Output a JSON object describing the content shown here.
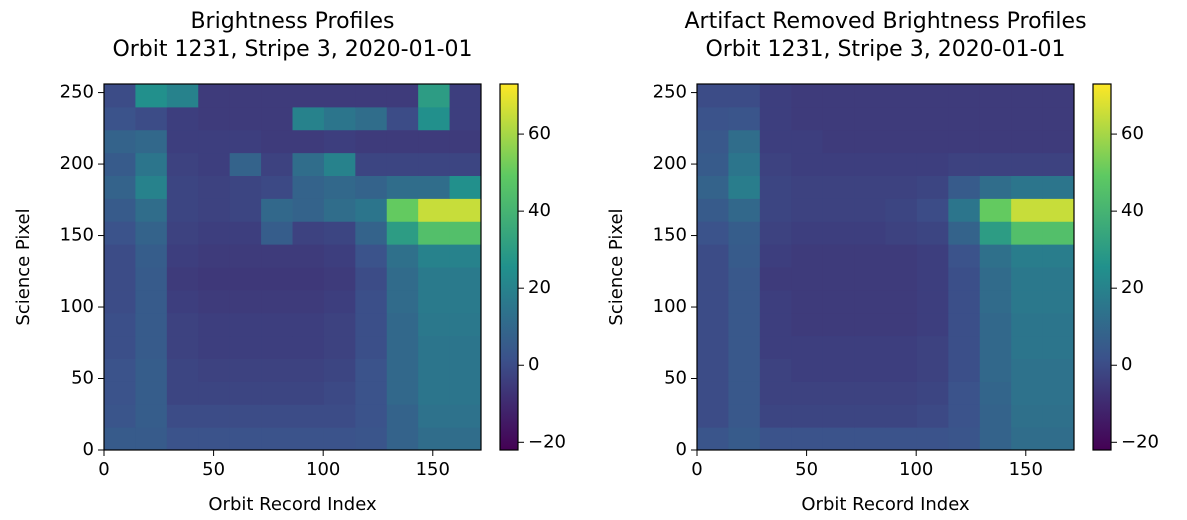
{
  "chart_data": [
    {
      "type": "heatmap",
      "title": "Brightness Profiles",
      "subtitle": "Orbit 1231, Stripe 3, 2020-01-01",
      "x_label": "Orbit Record Index",
      "y_label": "Science Pixel",
      "colormap": "viridis",
      "xlim": [
        0,
        172
      ],
      "ylim": [
        0,
        256
      ],
      "xticks": [
        0,
        50,
        100,
        150
      ],
      "yticks": [
        0,
        50,
        100,
        150,
        200,
        250
      ],
      "clim": [
        -22,
        73
      ],
      "cticks": [
        {
          "value": -20,
          "label": "−20"
        },
        0,
        20,
        40,
        60
      ],
      "z": [
        [
          5,
          5,
          2,
          2,
          2,
          2,
          2,
          2,
          3,
          8,
          12,
          12
        ],
        [
          3,
          6,
          0,
          0,
          0,
          0,
          0,
          0,
          2,
          8,
          14,
          14
        ],
        [
          2,
          6,
          -2,
          -2,
          -2,
          -2,
          -2,
          -1,
          2,
          10,
          15,
          15
        ],
        [
          2,
          6,
          -2,
          -3,
          -3,
          -3,
          -3,
          -2,
          2,
          10,
          15,
          15
        ],
        [
          1,
          5,
          -3,
          -4,
          -4,
          -4,
          -4,
          -3,
          1,
          10,
          15,
          15
        ],
        [
          1,
          5,
          -3,
          -4,
          -4,
          -4,
          -4,
          -3,
          1,
          10,
          16,
          16
        ],
        [
          0,
          5,
          -4,
          -5,
          -5,
          -5,
          -5,
          -4,
          1,
          11,
          17,
          17
        ],
        [
          0,
          5,
          -5,
          -6,
          -6,
          -6,
          -6,
          -5,
          0,
          11,
          17,
          17
        ],
        [
          0,
          6,
          -4,
          -5,
          -5,
          -5,
          -5,
          -4,
          2,
          13,
          20,
          20
        ],
        [
          2,
          8,
          -3,
          -4,
          -4,
          6,
          -3,
          -2,
          8,
          30,
          45,
          45
        ],
        [
          5,
          12,
          -2,
          -3,
          -2,
          10,
          8,
          12,
          15,
          50,
          65,
          65
        ],
        [
          8,
          20,
          -2,
          -3,
          -2,
          -1,
          8,
          10,
          8,
          12,
          12,
          25
        ],
        [
          5,
          15,
          -3,
          -4,
          8,
          -3,
          12,
          20,
          -2,
          -2,
          -2,
          -2
        ],
        [
          8,
          10,
          -4,
          -4,
          -4,
          -5,
          -5,
          -4,
          -5,
          -5,
          -5,
          -5
        ],
        [
          2,
          0,
          -4,
          -5,
          -5,
          -5,
          20,
          15,
          12,
          0,
          25,
          -4
        ],
        [
          0,
          25,
          20,
          -5,
          -5,
          -5,
          -5,
          -5,
          -5,
          -5,
          30,
          -4
        ]
      ]
    },
    {
      "type": "heatmap",
      "title": "Artifact Removed Brightness Profiles",
      "subtitle": "Orbit 1231, Stripe 3, 2020-01-01",
      "x_label": "Orbit Record Index",
      "y_label": "Science Pixel",
      "colormap": "viridis",
      "xlim": [
        0,
        172
      ],
      "ylim": [
        0,
        256
      ],
      "xticks": [
        0,
        50,
        100,
        150
      ],
      "yticks": [
        0,
        50,
        100,
        150,
        200,
        250
      ],
      "clim": [
        -22,
        73
      ],
      "cticks": [
        {
          "value": -20,
          "label": "−20"
        },
        0,
        20,
        40,
        60
      ],
      "z": [
        [
          3,
          5,
          2,
          2,
          2,
          2,
          2,
          2,
          3,
          8,
          12,
          12
        ],
        [
          0,
          4,
          -2,
          -2,
          -2,
          -2,
          -2,
          -1,
          2,
          8,
          13,
          13
        ],
        [
          0,
          4,
          -3,
          -3,
          -3,
          -3,
          -3,
          -2,
          2,
          9,
          14,
          14
        ],
        [
          0,
          4,
          -3,
          -4,
          -4,
          -4,
          -4,
          -3,
          1,
          10,
          14,
          14
        ],
        [
          0,
          4,
          -4,
          -4,
          -4,
          -4,
          -4,
          -3,
          1,
          10,
          15,
          15
        ],
        [
          0,
          4,
          -4,
          -5,
          -5,
          -5,
          -5,
          -4,
          1,
          10,
          15,
          15
        ],
        [
          0,
          4,
          -4,
          -5,
          -5,
          -5,
          -5,
          -4,
          1,
          11,
          16,
          16
        ],
        [
          0,
          4,
          -5,
          -5,
          -5,
          -5,
          -5,
          -4,
          1,
          11,
          16,
          16
        ],
        [
          0,
          5,
          -4,
          -5,
          -5,
          -5,
          -5,
          -4,
          2,
          13,
          18,
          18
        ],
        [
          2,
          6,
          -3,
          -4,
          -4,
          -4,
          -3,
          -2,
          8,
          30,
          45,
          45
        ],
        [
          5,
          10,
          -2,
          -3,
          -3,
          -3,
          -2,
          0,
          15,
          50,
          65,
          65
        ],
        [
          8,
          18,
          -2,
          -3,
          -3,
          -3,
          -3,
          -2,
          5,
          12,
          15,
          15
        ],
        [
          5,
          15,
          -3,
          -4,
          -4,
          -4,
          -4,
          -4,
          -3,
          -3,
          -3,
          -3
        ],
        [
          4,
          12,
          -4,
          -4,
          -5,
          -5,
          -5,
          -5,
          -5,
          -5,
          -5,
          -5
        ],
        [
          2,
          3,
          -4,
          -5,
          -5,
          -5,
          -5,
          -5,
          -5,
          -5,
          -5,
          -5
        ],
        [
          0,
          0,
          -4,
          -5,
          -5,
          -5,
          -5,
          -5,
          -5,
          -5,
          -5,
          -5
        ]
      ]
    }
  ]
}
